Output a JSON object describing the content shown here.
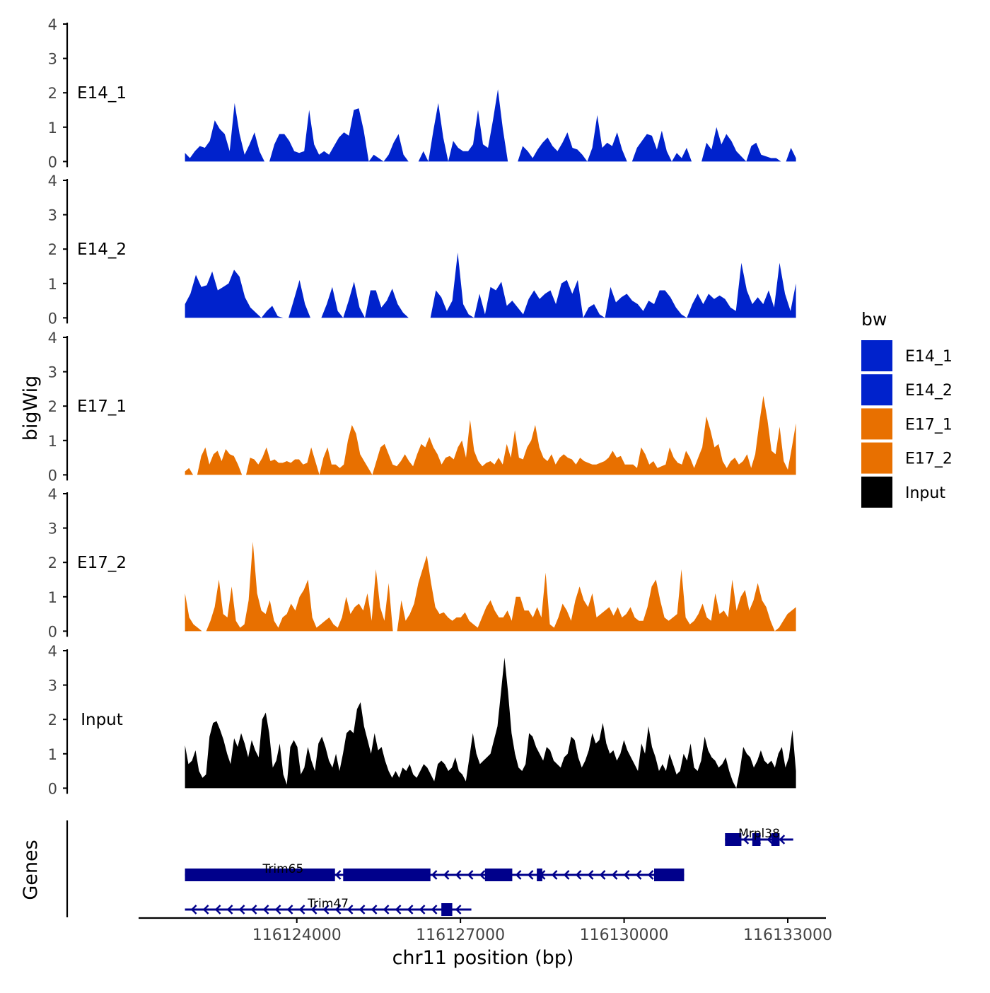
{
  "chart_data": {
    "type": "area",
    "title": "",
    "ylabel": "bigWig",
    "xlabel": "chr11 position (bp)",
    "ylim": [
      0,
      4
    ],
    "yticks": [
      "0",
      "1",
      "2",
      "3",
      "4"
    ],
    "xlim": [
      116121100,
      116133700
    ],
    "xticks": [
      {
        "value": 116124000,
        "label": "116124000"
      },
      {
        "value": 116127000,
        "label": "116127000"
      },
      {
        "value": 116130000,
        "label": "116130000"
      },
      {
        "value": 116133000,
        "label": "116133000"
      }
    ],
    "x_start": 116121950,
    "x_end": 116133150,
    "legend": {
      "title": "bw",
      "position": "right",
      "items": [
        {
          "label": "E14_1",
          "color": "#0022CC"
        },
        {
          "label": "E14_2",
          "color": "#0022CC"
        },
        {
          "label": "E17_1",
          "color": "#E87000"
        },
        {
          "label": "E17_2",
          "color": "#E87000"
        },
        {
          "label": "Input",
          "color": "#000000"
        }
      ]
    },
    "series": [
      {
        "name": "E14_1",
        "color": "#0022CC",
        "values": [
          0.25,
          0.1,
          0.3,
          0.45,
          0.4,
          0.6,
          1.2,
          0.95,
          0.8,
          0.3,
          1.7,
          0.8,
          0.2,
          0.5,
          0.85,
          0.3,
          0,
          0,
          0.5,
          0.8,
          0.8,
          0.6,
          0.3,
          0.25,
          0.3,
          1.5,
          0.5,
          0.2,
          0.3,
          0.2,
          0.45,
          0.7,
          0.85,
          0.75,
          1.5,
          1.55,
          0.9,
          0,
          0.2,
          0.1,
          0,
          0.2,
          0.55,
          0.8,
          0.2,
          0,
          0,
          0,
          0.3,
          0,
          0.9,
          1.7,
          0.7,
          0,
          0.6,
          0.4,
          0.3,
          0.3,
          0.5,
          1.5,
          0.5,
          0.4,
          1.2,
          2.1,
          0.95,
          0,
          0,
          0,
          0.45,
          0.3,
          0.1,
          0.35,
          0.55,
          0.7,
          0.45,
          0.3,
          0.55,
          0.85,
          0.4,
          0.35,
          0.2,
          0,
          0.4,
          1.35,
          0.4,
          0.55,
          0.45,
          0.85,
          0.35,
          0,
          0,
          0.4,
          0.6,
          0.8,
          0.75,
          0.35,
          0.9,
          0.3,
          0,
          0.25,
          0.1,
          0.4,
          0,
          0,
          0,
          0.55,
          0.35,
          1.0,
          0.5,
          0.8,
          0.6,
          0.3,
          0.15,
          0,
          0.45,
          0.55,
          0.2,
          0.15,
          0.1,
          0.1,
          0,
          0,
          0.4,
          0.1
        ],
        "gaps": [
          [
            0,
            0.04
          ]
        ]
      },
      {
        "name": "E14_2",
        "color": "#0022CC",
        "values": [
          0.4,
          0.7,
          1.25,
          0.9,
          0.95,
          1.35,
          0.8,
          0.9,
          1.0,
          1.4,
          1.2,
          0.6,
          0.3,
          0.15,
          0,
          0.2,
          0.35,
          0.05,
          0,
          0,
          0.55,
          1.1,
          0.4,
          0,
          0,
          0,
          0.4,
          0.9,
          0.2,
          0,
          0.5,
          1.05,
          0.3,
          0,
          0.8,
          0.8,
          0.3,
          0.5,
          0.85,
          0.4,
          0.15,
          0,
          0,
          0,
          0,
          0,
          0.8,
          0.6,
          0.2,
          0.5,
          1.9,
          0.4,
          0.1,
          0,
          0.7,
          0.1,
          0.9,
          0.8,
          1.05,
          0.35,
          0.5,
          0.3,
          0.1,
          0.55,
          0.8,
          0.55,
          0.7,
          0.8,
          0.4,
          1.0,
          1.1,
          0.7,
          1.1,
          0,
          0.3,
          0.4,
          0.1,
          0,
          0.9,
          0.45,
          0.6,
          0.7,
          0.5,
          0.4,
          0.2,
          0.5,
          0.4,
          0.8,
          0.8,
          0.6,
          0.3,
          0.1,
          0,
          0.4,
          0.7,
          0.4,
          0.7,
          0.55,
          0.65,
          0.55,
          0.3,
          0.2,
          1.6,
          0.8,
          0.4,
          0.6,
          0.4,
          0.8,
          0.3,
          1.6,
          0.7,
          0.2,
          1.0
        ]
      },
      {
        "name": "E17_1",
        "color": "#E87000",
        "values": [
          0.1,
          0.2,
          0,
          0,
          0.55,
          0.8,
          0.3,
          0.6,
          0.7,
          0.4,
          0.75,
          0.6,
          0.55,
          0.3,
          0,
          0,
          0.5,
          0.45,
          0.3,
          0.5,
          0.8,
          0.4,
          0.45,
          0.35,
          0.35,
          0.4,
          0.35,
          0.45,
          0.45,
          0.3,
          0.35,
          0.8,
          0.4,
          0,
          0.5,
          0.8,
          0.3,
          0.3,
          0.2,
          0.3,
          1.0,
          1.45,
          1.2,
          0.6,
          0.4,
          0.2,
          0,
          0.4,
          0.8,
          0.9,
          0.6,
          0.3,
          0.25,
          0.4,
          0.6,
          0.4,
          0.25,
          0.6,
          0.9,
          0.8,
          1.1,
          0.8,
          0.6,
          0.3,
          0.5,
          0.55,
          0.45,
          0.8,
          1.0,
          0.5,
          1.6,
          0.7,
          0.4,
          0.25,
          0.35,
          0.4,
          0.3,
          0.5,
          0.3,
          0.9,
          0.5,
          1.3,
          0.5,
          0.45,
          0.8,
          1.0,
          1.45,
          0.8,
          0.5,
          0.4,
          0.6,
          0.3,
          0.5,
          0.6,
          0.5,
          0.45,
          0.3,
          0.5,
          0.4,
          0.35,
          0.3,
          0.3,
          0.35,
          0.4,
          0.5,
          0.7,
          0.5,
          0.55,
          0.3,
          0.3,
          0.3,
          0.2,
          0.8,
          0.6,
          0.3,
          0.4,
          0.2,
          0.25,
          0.3,
          0.8,
          0.5,
          0.35,
          0.3,
          0.7,
          0.5,
          0.2,
          0.5,
          0.8,
          1.7,
          1.3,
          0.8,
          0.9,
          0.4,
          0.2,
          0.4,
          0.5,
          0.3,
          0.4,
          0.6,
          0.2,
          0.6,
          1.5,
          2.3,
          1.6,
          0.7,
          0.6,
          1.4,
          0.4,
          0.15,
          0.8,
          1.5
        ]
      },
      {
        "name": "E17_2",
        "color": "#E87000",
        "values": [
          1.1,
          0.4,
          0.2,
          0.1,
          0,
          0,
          0.3,
          0.7,
          1.5,
          0.5,
          0.4,
          1.3,
          0.3,
          0.1,
          0.2,
          0.9,
          2.6,
          1.1,
          0.6,
          0.5,
          0.9,
          0.3,
          0.1,
          0.4,
          0.5,
          0.8,
          0.6,
          1.0,
          1.2,
          1.5,
          0.4,
          0.1,
          0.2,
          0.3,
          0.4,
          0.2,
          0.1,
          0.4,
          1.0,
          0.5,
          0.7,
          0.8,
          0.6,
          1.1,
          0.3,
          1.8,
          0.7,
          0.3,
          1.4,
          0,
          0,
          0.9,
          0.3,
          0.5,
          0.8,
          1.4,
          1.8,
          2.2,
          1.4,
          0.7,
          0.5,
          0.55,
          0.4,
          0.3,
          0.4,
          0.4,
          0.55,
          0.3,
          0.2,
          0.1,
          0.4,
          0.7,
          0.9,
          0.6,
          0.4,
          0.4,
          0.6,
          0.3,
          1.0,
          1.0,
          0.6,
          0.6,
          0.4,
          0.7,
          0.4,
          1.7,
          0.2,
          0.1,
          0.4,
          0.8,
          0.6,
          0.3,
          0.9,
          1.3,
          0.9,
          0.7,
          1.1,
          0.4,
          0.5,
          0.6,
          0.7,
          0.45,
          0.7,
          0.4,
          0.5,
          0.7,
          0.4,
          0.3,
          0.3,
          0.7,
          1.3,
          1.5,
          0.9,
          0.4,
          0.3,
          0.4,
          0.5,
          1.8,
          0.4,
          0.2,
          0.3,
          0.5,
          0.8,
          0.4,
          0.3,
          1.1,
          0.5,
          0.6,
          0.4,
          1.5,
          0.6,
          1.0,
          1.2,
          0.6,
          0.9,
          1.4,
          0.9,
          0.7,
          0.3,
          0,
          0.1,
          0.3,
          0.5,
          0.6,
          0.7
        ]
      },
      {
        "name": "Input",
        "color": "#000000",
        "values": [
          1.25,
          0.7,
          0.8,
          1.1,
          0.5,
          0.3,
          0.4,
          1.5,
          1.9,
          1.95,
          1.7,
          1.4,
          1.0,
          0.7,
          1.45,
          1.2,
          1.6,
          1.3,
          0.9,
          1.4,
          1.1,
          0.9,
          2.0,
          2.2,
          1.6,
          0.6,
          0.8,
          1.3,
          0.4,
          0.1,
          1.2,
          1.4,
          1.2,
          0.4,
          0.6,
          1.2,
          0.8,
          0.5,
          1.3,
          1.5,
          1.2,
          0.8,
          0.6,
          1.0,
          0.5,
          1.0,
          1.6,
          1.7,
          1.6,
          2.3,
          2.5,
          1.8,
          1.4,
          1.0,
          1.6,
          1.1,
          1.2,
          0.8,
          0.5,
          0.3,
          0.5,
          0.3,
          0.6,
          0.5,
          0.7,
          0.4,
          0.3,
          0.5,
          0.7,
          0.6,
          0.4,
          0.2,
          0.7,
          0.8,
          0.7,
          0.5,
          0.6,
          0.9,
          0.5,
          0.4,
          0.2,
          0.9,
          1.6,
          1.0,
          0.7,
          0.8,
          0.9,
          1.0,
          1.4,
          1.8,
          2.8,
          3.8,
          2.8,
          1.6,
          1.0,
          0.6,
          0.5,
          0.7,
          1.6,
          1.5,
          1.2,
          1.0,
          0.8,
          1.2,
          1.1,
          0.8,
          0.7,
          0.6,
          0.9,
          1.0,
          1.5,
          1.4,
          0.9,
          0.6,
          0.8,
          1.1,
          1.6,
          1.3,
          1.4,
          1.9,
          1.3,
          1.0,
          1.1,
          0.8,
          1.0,
          1.4,
          1.1,
          0.9,
          0.7,
          0.5,
          1.3,
          1.0,
          1.8,
          1.2,
          0.9,
          0.5,
          0.7,
          0.5,
          1.0,
          0.7,
          0.4,
          0.5,
          1.0,
          0.8,
          1.3,
          0.6,
          0.5,
          0.8,
          1.5,
          1.1,
          0.9,
          0.8,
          0.6,
          0.7,
          0.9,
          0.5,
          0.2,
          0.0,
          0.5,
          1.2,
          1.0,
          0.9,
          0.6,
          0.8,
          1.1,
          0.8,
          0.7,
          0.8,
          0.6,
          1.0,
          1.2,
          0.6,
          0.9,
          1.7,
          0.5
        ]
      }
    ],
    "genes": {
      "title": "Genes",
      "items": [
        {
          "name": "Mrpl38",
          "start": 116131850,
          "end": 116133100,
          "row": 0,
          "exons": [
            [
              116131850,
              116132150
            ],
            [
              116132350,
              116132500
            ],
            [
              116132700,
              116132850
            ]
          ]
        },
        {
          "name": "Trim65",
          "start": 116121950,
          "end": 116125550,
          "row": 1,
          "continues_to": 116131100,
          "exons": [
            [
              116121950,
              116124700
            ],
            [
              116124850,
              116126450
            ],
            [
              116127450,
              116127950
            ],
            [
              116128400,
              116128500
            ],
            [
              116130550,
              116131100
            ]
          ]
        },
        {
          "name": "Trim47",
          "start": 116121950,
          "end": 116127200,
          "row": 2,
          "exons": [
            [
              116126650,
              116126850
            ]
          ]
        }
      ]
    }
  }
}
